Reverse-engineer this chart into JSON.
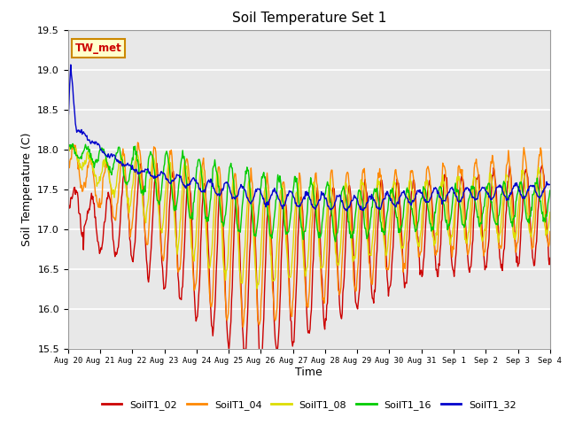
{
  "title": "Soil Temperature Set 1",
  "xlabel": "Time",
  "ylabel": "Soil Temperature (C)",
  "ylim": [
    15.5,
    19.5
  ],
  "yticks": [
    15.5,
    16.0,
    16.5,
    17.0,
    17.5,
    18.0,
    18.5,
    19.0,
    19.5
  ],
  "series_names": [
    "SoilT1_02",
    "SoilT1_04",
    "SoilT1_08",
    "SoilT1_16",
    "SoilT1_32"
  ],
  "series_colors": [
    "#cc0000",
    "#ff8800",
    "#dddd00",
    "#00cc00",
    "#0000cc"
  ],
  "annotation_text": "TW_met",
  "annotation_color": "#cc0000",
  "annotation_bg": "#ffffcc",
  "annotation_border": "#cc8800",
  "bg_color": "#e8e8e8",
  "n_days": 15,
  "x_labels": [
    "Aug 20",
    "Aug 21",
    "Aug 22",
    "Aug 23",
    "Aug 24",
    "Aug 25",
    "Aug 26",
    "Aug 27",
    "Aug 28",
    "Aug 29",
    "Aug 30",
    "Aug 31",
    "Sep 1",
    "Sep 2",
    "Sep 3",
    "Sep 4"
  ],
  "figsize": [
    6.4,
    4.8
  ],
  "dpi": 100
}
